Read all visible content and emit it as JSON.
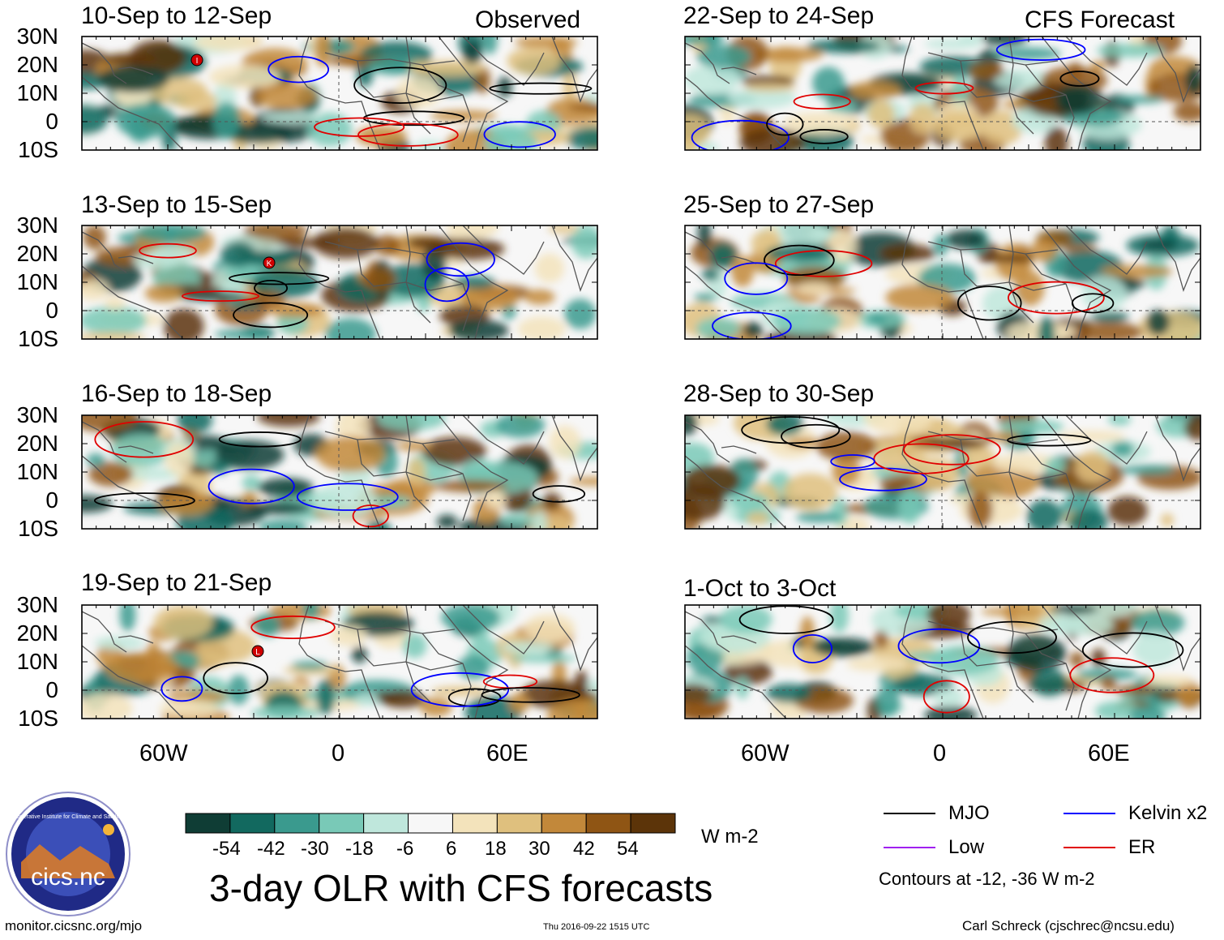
{
  "headers": {
    "left": "Observed",
    "right": "CFS Forecast"
  },
  "panels": [
    {
      "column": "left",
      "row": 0,
      "title": "10-Sep to 12-Sep"
    },
    {
      "column": "left",
      "row": 1,
      "title": "13-Sep to 15-Sep"
    },
    {
      "column": "left",
      "row": 2,
      "title": "16-Sep to 18-Sep"
    },
    {
      "column": "left",
      "row": 3,
      "title": "19-Sep to 21-Sep"
    },
    {
      "column": "right",
      "row": 0,
      "title": "22-Sep to 24-Sep"
    },
    {
      "column": "right",
      "row": 1,
      "title": "25-Sep to 27-Sep"
    },
    {
      "column": "right",
      "row": 2,
      "title": "28-Sep to 30-Sep"
    },
    {
      "column": "right",
      "row": 3,
      "title": "1-Oct to 3-Oct"
    }
  ],
  "lat_labels": [
    "30N",
    "20N",
    "10N",
    "0",
    "10S"
  ],
  "lon_labels": [
    "60W",
    "0",
    "60E"
  ],
  "colorbar": {
    "labels": [
      "-54",
      "-42",
      "-30",
      "-18",
      "-6",
      "6",
      "18",
      "30",
      "42",
      "54"
    ],
    "colors": [
      "#0f3d35",
      "#12695f",
      "#3a9a8e",
      "#79c9b7",
      "#bfe7dc",
      "#f7f7f7",
      "#f3e3bb",
      "#dfc07e",
      "#c2883a",
      "#8f5514",
      "#5c3409"
    ],
    "units": "W m-2"
  },
  "legend": {
    "items": [
      {
        "label": "MJO",
        "color": "#000000"
      },
      {
        "label": "Kelvin x2",
        "color": "#0000ff"
      },
      {
        "label": "Low",
        "color": "#a020f0"
      },
      {
        "label": "ER",
        "color": "#e00000"
      }
    ],
    "note": "Contours at -12, -36 W m-2"
  },
  "main_title": "3-day OLR with CFS forecasts",
  "footer": {
    "left": "monitor.cicsnc.org/mjo",
    "center": "Thu 2016-09-22 1515 UTC",
    "right": "Carl Schreck (cjschrec@ncsu.edu)"
  },
  "logo": {
    "text": "cics.nc",
    "ring_text": "Cooperative Institute for Climate and Satellites"
  },
  "map_symbols": [
    "I",
    "K",
    "L"
  ],
  "colors": {
    "coast": "#555555",
    "equator": "#555555"
  }
}
